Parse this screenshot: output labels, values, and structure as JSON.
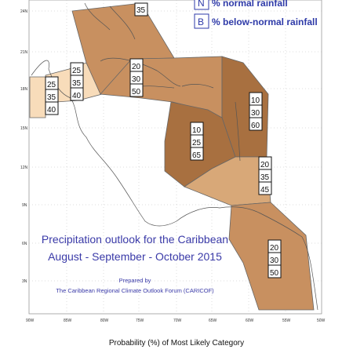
{
  "map": {
    "lat_labels": [
      "24N",
      "21N",
      "18N",
      "15N",
      "12N",
      "9N",
      "6N",
      "3N"
    ],
    "lon_labels": [
      "90W",
      "85W",
      "80W",
      "75W",
      "70W",
      "65W",
      "60W",
      "55W",
      "50W"
    ],
    "legend": {
      "n_key": "N",
      "n_text": "% normal rainfall",
      "b_key": "B",
      "b_text": "% below-normal rainfall"
    },
    "title": {
      "line1": "Precipitation outlook for the Caribbean",
      "line2": "August - September - October 2015"
    },
    "prepared_by": {
      "line1": "Prepared by",
      "line2": "The Caribbean Regional Climate Outlook Forum (CARICOF)"
    },
    "boxes": [
      {
        "id": "bahamas",
        "values": [
          "35"
        ]
      },
      {
        "id": "belize",
        "values": [
          "25",
          "35",
          "40"
        ]
      },
      {
        "id": "yucatan",
        "values": [
          "25",
          "35",
          "40"
        ]
      },
      {
        "id": "greater-antilles",
        "values": [
          "20",
          "30",
          "50"
        ]
      },
      {
        "id": "leeward",
        "values": [
          "10",
          "30",
          "60"
        ]
      },
      {
        "id": "caribbean-sea",
        "values": [
          "10",
          "25",
          "65"
        ]
      },
      {
        "id": "windward",
        "values": [
          "20",
          "35",
          "45"
        ]
      },
      {
        "id": "guianas",
        "values": [
          "20",
          "30",
          "50"
        ]
      }
    ],
    "colors": {
      "light": "#f8dcba",
      "medium": "#d8a878",
      "strong": "#c89060",
      "darkest": "#a87040"
    }
  },
  "footer": {
    "caption": "Probability (%) of Most Likely Category"
  }
}
